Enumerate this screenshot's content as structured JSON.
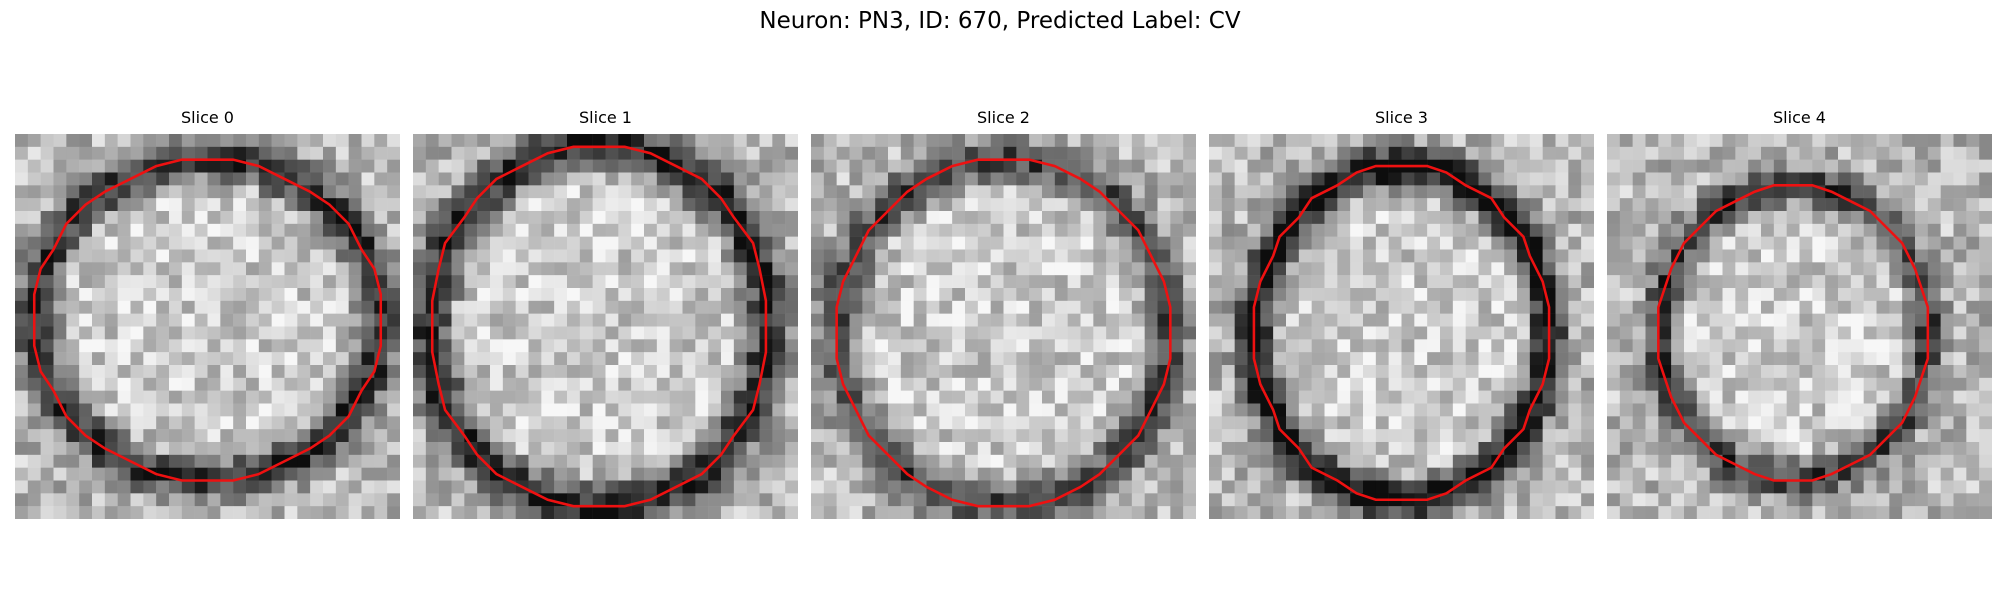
{
  "title": "Neuron: PN3, ID: 670, Predicted Label: CV",
  "outline_color": "#ee1111",
  "slices": [
    {
      "label": "Slice 0",
      "seed": 11,
      "center": [
        15,
        14.5
      ],
      "radius": [
        13.5,
        12.5
      ],
      "ring_strength": 0.55
    },
    {
      "label": "Slice 1",
      "seed": 23,
      "center": [
        14.5,
        15
      ],
      "radius": [
        13.2,
        14.2
      ],
      "ring_strength": 0.6
    },
    {
      "label": "Slice 2",
      "seed": 37,
      "center": [
        15,
        15.5
      ],
      "radius": [
        13.0,
        13.5
      ],
      "ring_strength": 0.45
    },
    {
      "label": "Slice 3",
      "seed": 49,
      "center": [
        15,
        15.5
      ],
      "radius": [
        11.5,
        13.0
      ],
      "ring_strength": 0.7
    },
    {
      "label": "Slice 4",
      "seed": 61,
      "center": [
        14.5,
        15.5
      ],
      "radius": [
        10.5,
        11.5
      ],
      "ring_strength": 0.5
    }
  ]
}
